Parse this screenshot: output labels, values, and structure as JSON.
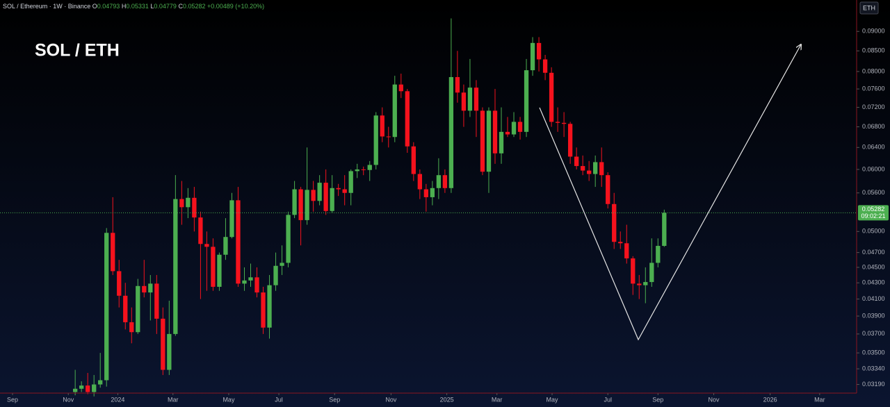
{
  "chart_data": {
    "type": "candlestick",
    "title": "SOL / ETH",
    "open": [
      0.0312,
      0.0315,
      0.0318,
      0.0312,
      0.0319,
      0.0323,
      0.0498,
      0.0445,
      0.0414,
      0.0383,
      0.0372,
      0.0426,
      0.0418,
      0.0429,
      0.0387,
      0.0333,
      0.037,
      0.055,
      0.0537,
      0.0552,
      0.0521,
      0.0482,
      0.0478,
      0.0425,
      0.0467,
      0.0492,
      0.0548,
      0.0429,
      0.0433,
      0.0437,
      0.0418,
      0.0377,
      0.0427,
      0.0452,
      0.0456,
      0.0525,
      0.0566,
      0.0517,
      0.0565,
      0.0547,
      0.0577,
      0.0531,
      0.0568,
      0.0566,
      0.056,
      0.0597,
      0.06,
      0.0599,
      0.0608,
      0.0703,
      0.0661,
      0.066,
      0.077,
      0.0755,
      0.0642,
      0.0592,
      0.0566,
      0.0553,
      0.0568,
      0.059,
      0.0568,
      0.0787,
      0.0752,
      0.0713,
      0.0763,
      0.0713,
      0.0596,
      0.0713,
      0.0629,
      0.067,
      0.0665,
      0.069,
      0.067,
      0.0803,
      0.087,
      0.0829,
      0.0797,
      0.069,
      0.0688,
      0.0686,
      0.0623,
      0.0606,
      0.0598,
      0.0592,
      0.0613,
      0.059,
      0.0542,
      0.0485,
      0.0483,
      0.0462,
      0.0429,
      0.0427,
      0.0431,
      0.0456,
      0.04793
    ],
    "high": [
      0.0333,
      0.0322,
      0.033,
      0.0328,
      0.035,
      0.0505,
      0.0553,
      0.046,
      0.043,
      0.04,
      0.0435,
      0.046,
      0.044,
      0.044,
      0.04,
      0.0408,
      0.059,
      0.058,
      0.0568,
      0.057,
      0.053,
      0.05,
      0.049,
      0.047,
      0.052,
      0.056,
      0.057,
      0.045,
      0.0455,
      0.045,
      0.0425,
      0.044,
      0.047,
      0.048,
      0.053,
      0.058,
      0.057,
      0.064,
      0.058,
      0.059,
      0.06,
      0.059,
      0.0575,
      0.059,
      0.06,
      0.061,
      0.0605,
      0.0615,
      0.071,
      0.072,
      0.068,
      0.079,
      0.0795,
      0.076,
      0.065,
      0.06,
      0.0575,
      0.058,
      0.062,
      0.06,
      0.0935,
      0.085,
      0.077,
      0.083,
      0.078,
      0.072,
      0.072,
      0.076,
      0.072,
      0.07,
      0.071,
      0.07,
      0.083,
      0.0885,
      0.0885,
      0.084,
      0.081,
      0.072,
      0.071,
      0.069,
      0.064,
      0.0625,
      0.0615,
      0.0625,
      0.064,
      0.0595,
      0.056,
      0.05,
      0.051,
      0.0465,
      0.044,
      0.045,
      0.049,
      0.049,
      0.05331
    ],
    "low": [
      0.0309,
      0.0312,
      0.031,
      0.0308,
      0.0316,
      0.0317,
      0.044,
      0.04,
      0.0375,
      0.036,
      0.037,
      0.0412,
      0.0385,
      0.037,
      0.0328,
      0.0328,
      0.0368,
      0.051,
      0.052,
      0.05,
      0.041,
      0.042,
      0.042,
      0.042,
      0.046,
      0.049,
      0.0425,
      0.042,
      0.0425,
      0.0412,
      0.037,
      0.0365,
      0.042,
      0.044,
      0.045,
      0.052,
      0.048,
      0.051,
      0.053,
      0.054,
      0.0525,
      0.0528,
      0.0555,
      0.054,
      0.054,
      0.0585,
      0.059,
      0.058,
      0.06,
      0.065,
      0.064,
      0.065,
      0.074,
      0.063,
      0.058,
      0.055,
      0.053,
      0.054,
      0.055,
      0.056,
      0.056,
      0.073,
      0.068,
      0.07,
      0.066,
      0.059,
      0.056,
      0.061,
      0.061,
      0.066,
      0.066,
      0.0655,
      0.066,
      0.079,
      0.08,
      0.078,
      0.068,
      0.067,
      0.066,
      0.061,
      0.06,
      0.059,
      0.058,
      0.057,
      0.057,
      0.0535,
      0.0475,
      0.0475,
      0.0455,
      0.0415,
      0.041,
      0.0405,
      0.0425,
      0.045,
      0.04779
    ],
    "close": [
      0.0315,
      0.0318,
      0.0312,
      0.0319,
      0.0323,
      0.0498,
      0.0445,
      0.0414,
      0.0383,
      0.0372,
      0.0426,
      0.0418,
      0.0429,
      0.0387,
      0.0333,
      0.037,
      0.055,
      0.0537,
      0.0552,
      0.0521,
      0.0482,
      0.0478,
      0.0425,
      0.0467,
      0.0492,
      0.0548,
      0.0429,
      0.0433,
      0.0437,
      0.0418,
      0.0377,
      0.0427,
      0.0452,
      0.0456,
      0.0525,
      0.0566,
      0.0517,
      0.0565,
      0.0547,
      0.0577,
      0.0531,
      0.0568,
      0.0566,
      0.056,
      0.0597,
      0.06,
      0.0599,
      0.0608,
      0.0703,
      0.0661,
      0.066,
      0.077,
      0.0755,
      0.0642,
      0.0592,
      0.0566,
      0.0553,
      0.0568,
      0.059,
      0.0568,
      0.0787,
      0.0752,
      0.0713,
      0.0763,
      0.0713,
      0.0596,
      0.0713,
      0.0629,
      0.067,
      0.0665,
      0.069,
      0.067,
      0.0803,
      0.087,
      0.0829,
      0.0797,
      0.069,
      0.0688,
      0.0686,
      0.0623,
      0.0606,
      0.0598,
      0.0592,
      0.0613,
      0.059,
      0.0542,
      0.0485,
      0.0483,
      0.0462,
      0.0429,
      0.0427,
      0.0431,
      0.0456,
      0.04793,
      0.05282
    ],
    "up_color": "#4caf50",
    "down_color": "#f5121d",
    "log_scale": true,
    "grid": false,
    "ylim": [
      0.0311,
      0.0987
    ],
    "yticks": [
      {
        "value": 0.09,
        "label": "0.09000"
      },
      {
        "value": 0.085,
        "label": "0.08500"
      },
      {
        "value": 0.08,
        "label": "0.08000"
      },
      {
        "value": 0.076,
        "label": "0.07600"
      },
      {
        "value": 0.072,
        "label": "0.07200"
      },
      {
        "value": 0.068,
        "label": "0.06800"
      },
      {
        "value": 0.064,
        "label": "0.06400"
      },
      {
        "value": 0.06,
        "label": "0.06000"
      },
      {
        "value": 0.056,
        "label": "0.05600"
      },
      {
        "value": 0.05,
        "label": "0.05000"
      },
      {
        "value": 0.047,
        "label": "0.04700"
      },
      {
        "value": 0.045,
        "label": "0.04500"
      },
      {
        "value": 0.043,
        "label": "0.04300"
      },
      {
        "value": 0.041,
        "label": "0.04100"
      },
      {
        "value": 0.039,
        "label": "0.03900"
      },
      {
        "value": 0.037,
        "label": "0.03700"
      },
      {
        "value": 0.035,
        "label": "0.03500"
      },
      {
        "value": 0.0334,
        "label": "0.03340"
      },
      {
        "value": 0.0319,
        "label": "0.03190"
      }
    ],
    "xlim": [
      -12.0,
      124.7
    ],
    "xticks": [
      {
        "value": -10.0,
        "label": "Sep"
      },
      {
        "value": -1.1,
        "label": "Nov"
      },
      {
        "value": 6.8,
        "label": "2024"
      },
      {
        "value": 15.6,
        "label": "Mar"
      },
      {
        "value": 24.5,
        "label": "May"
      },
      {
        "value": 32.5,
        "label": "Jul"
      },
      {
        "value": 41.4,
        "label": "Sep"
      },
      {
        "value": 50.4,
        "label": "Nov"
      },
      {
        "value": 59.3,
        "label": "2025"
      },
      {
        "value": 67.3,
        "label": "Mar"
      },
      {
        "value": 76.1,
        "label": "May"
      },
      {
        "value": 85.0,
        "label": "Jul"
      },
      {
        "value": 93.0,
        "label": "Sep"
      },
      {
        "value": 101.9,
        "label": "Nov"
      },
      {
        "value": 110.9,
        "label": "2026"
      },
      {
        "value": 118.8,
        "label": "Mar"
      }
    ],
    "countdown": "09:02:21"
  },
  "header": {
    "symbol": "SOL / Ethereum · 1W · Binance",
    "open_label": "O",
    "high_label": "H",
    "low_label": "L",
    "close_label": "C",
    "change": "+0.00489 (+10.20%)"
  },
  "toolbar": {
    "currency": "ETH"
  }
}
